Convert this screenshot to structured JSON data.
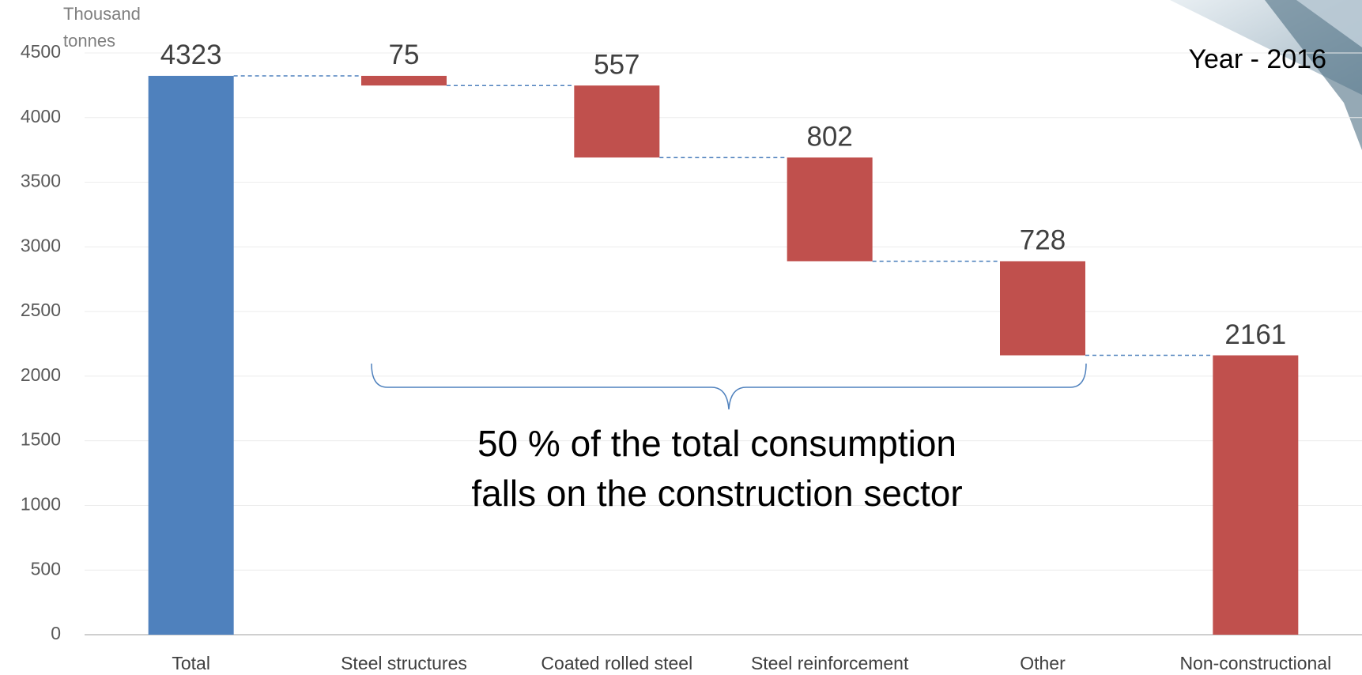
{
  "chart_data": {
    "type": "waterfall",
    "y_label": [
      "Thousand",
      "tonnes"
    ],
    "annotation": "Year - 2016",
    "note": [
      "50 % of the total consumption",
      "falls on the construction sector"
    ],
    "categories": [
      "Total",
      "Steel structures",
      "Coated rolled steel",
      "Steel reinforcement",
      "Other",
      "Non-constructional"
    ],
    "values": [
      4323,
      75,
      557,
      802,
      728,
      2161
    ],
    "colors": [
      "#4f81bd",
      "#c0504d",
      "#c0504d",
      "#c0504d",
      "#c0504d",
      "#c0504d"
    ],
    "ylim": [
      0,
      4500
    ],
    "yticks": [
      0,
      500,
      1000,
      1500,
      2000,
      2500,
      3000,
      3500,
      4000,
      4500
    ],
    "grid": true
  }
}
